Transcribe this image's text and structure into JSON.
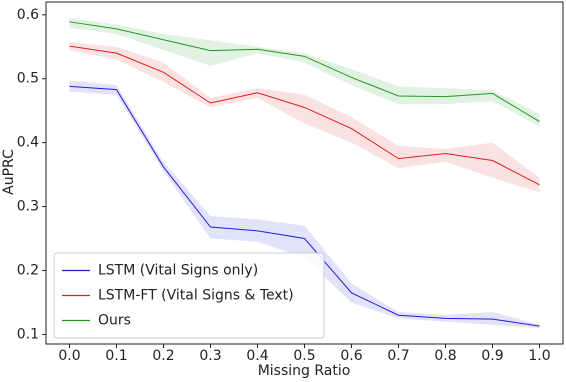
{
  "chart_data": {
    "type": "line",
    "x_label": "Missing Ratio",
    "y_label": "AuPRC",
    "x": [
      0.0,
      0.1,
      0.2,
      0.3,
      0.4,
      0.5,
      0.6,
      0.7,
      0.8,
      0.9,
      1.0
    ],
    "xlim": [
      -0.05,
      1.05
    ],
    "xticks": [
      {
        "value": 0.0,
        "label": "0.0"
      },
      0.1,
      0.2,
      0.3,
      0.4,
      0.5,
      0.6,
      0.7,
      0.8,
      0.9,
      {
        "value": 1.0,
        "label": "1.0"
      }
    ],
    "ylim": [
      0.085,
      0.62
    ],
    "yticks": [
      0.1,
      0.2,
      0.3,
      0.4,
      0.5,
      0.6
    ],
    "legend": "lower left",
    "series": [
      {
        "name": "LSTM (Vital Signs only)",
        "color": "#1f1fd6",
        "values": [
          0.488,
          0.483,
          0.362,
          0.268,
          0.262,
          0.25,
          0.165,
          0.13,
          0.125,
          0.124,
          0.113
        ],
        "lower": [
          0.48,
          0.475,
          0.355,
          0.25,
          0.245,
          0.22,
          0.15,
          0.125,
          0.12,
          0.115,
          0.11
        ],
        "upper": [
          0.497,
          0.49,
          0.37,
          0.285,
          0.28,
          0.27,
          0.18,
          0.135,
          0.13,
          0.135,
          0.115
        ]
      },
      {
        "name": "LSTM-FT (Vital Signs & Text)",
        "color": "#e01f1f",
        "values": [
          0.551,
          0.54,
          0.51,
          0.462,
          0.478,
          0.455,
          0.422,
          0.375,
          0.383,
          0.372,
          0.334
        ],
        "lower": [
          0.545,
          0.53,
          0.495,
          0.455,
          0.47,
          0.43,
          0.4,
          0.36,
          0.37,
          0.345,
          0.322
        ],
        "upper": [
          0.557,
          0.55,
          0.525,
          0.47,
          0.485,
          0.475,
          0.44,
          0.395,
          0.39,
          0.4,
          0.345
        ]
      },
      {
        "name": "Ours",
        "color": "#1f9a1f",
        "values": [
          0.589,
          0.578,
          0.561,
          0.544,
          0.546,
          0.535,
          0.502,
          0.473,
          0.472,
          0.477,
          0.433
        ],
        "lower": [
          0.58,
          0.57,
          0.545,
          0.52,
          0.54,
          0.525,
          0.49,
          0.46,
          0.46,
          0.465,
          0.425
        ],
        "upper": [
          0.595,
          0.585,
          0.57,
          0.56,
          0.55,
          0.54,
          0.515,
          0.488,
          0.485,
          0.482,
          0.445
        ]
      }
    ]
  }
}
